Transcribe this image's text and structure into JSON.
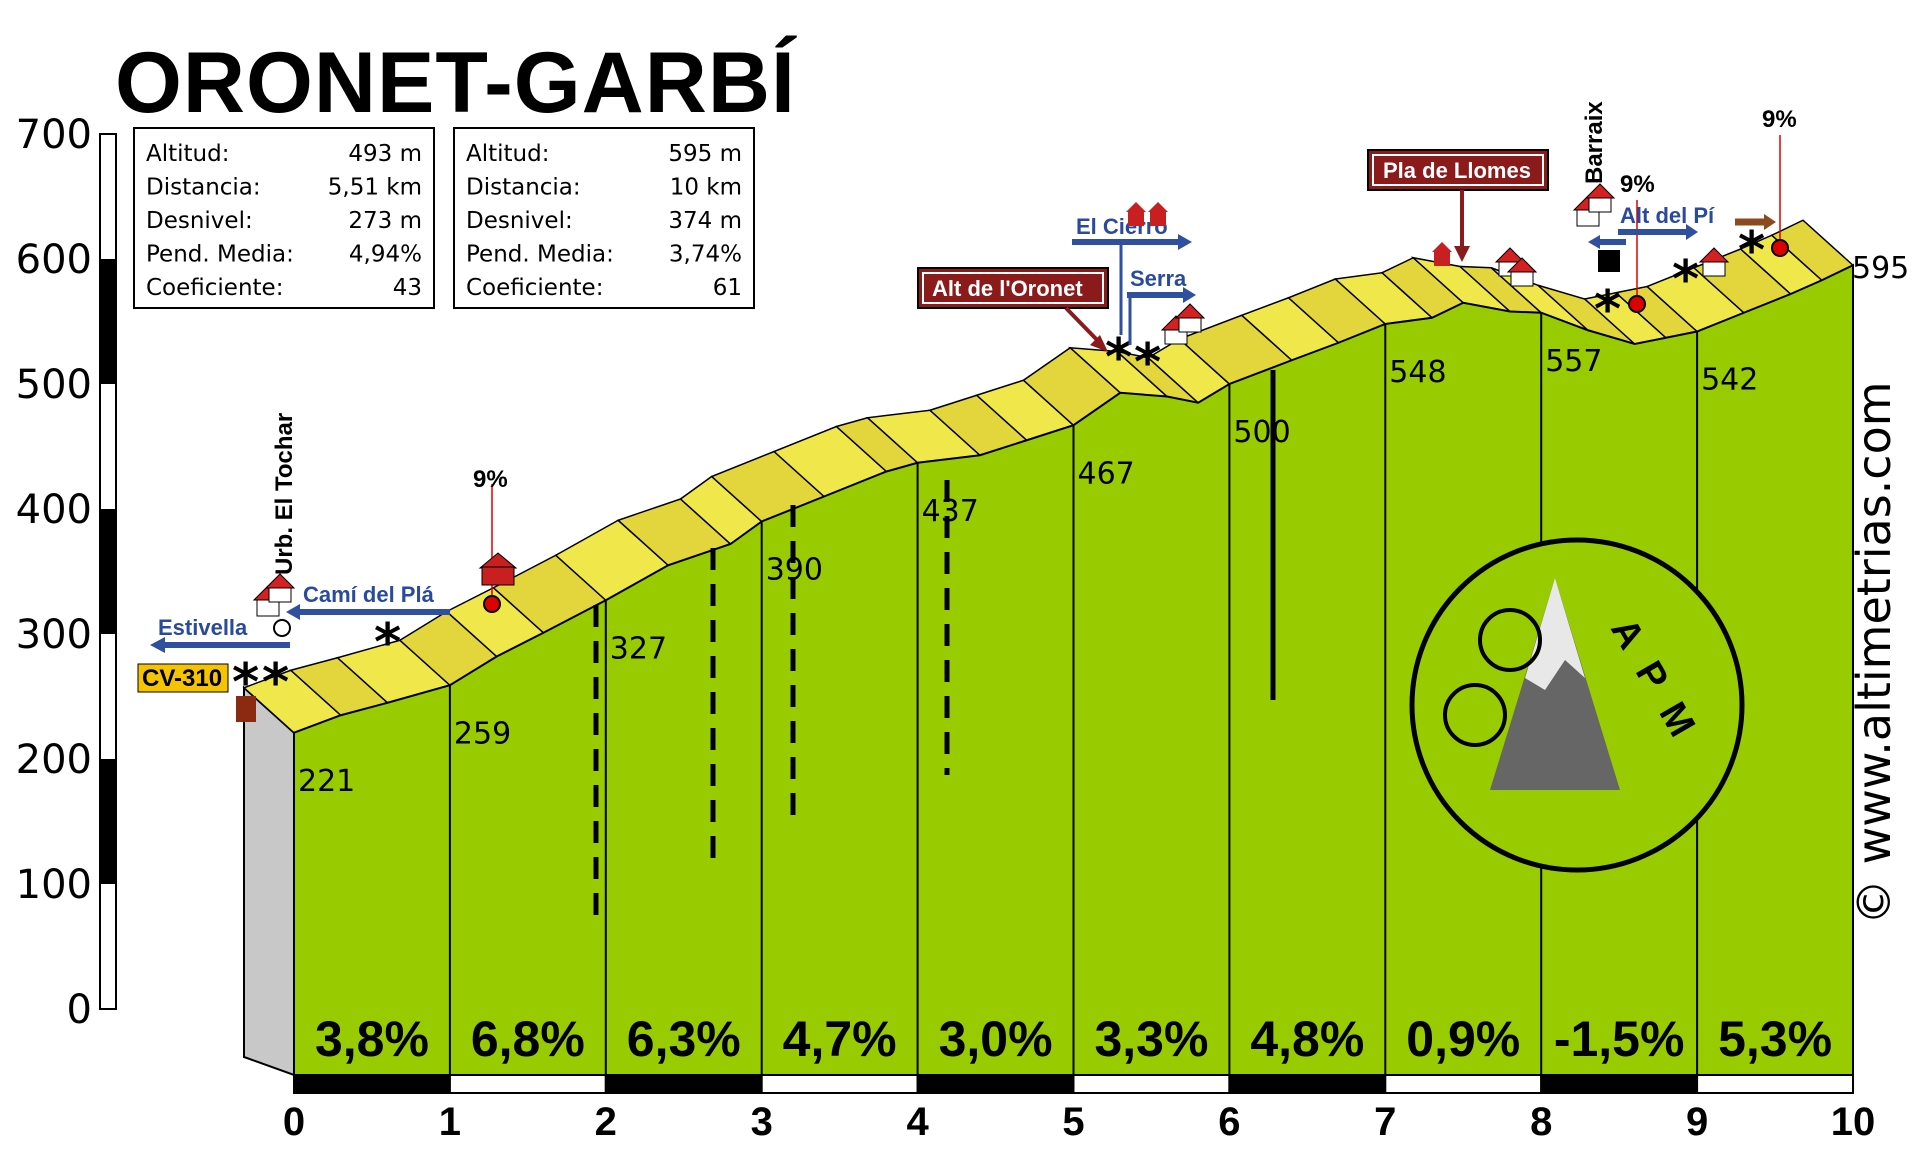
{
  "title": "ORONET-GARBÍ",
  "site": "© www.altimetrias.com",
  "logo_text": "APM",
  "colors": {
    "profile_green": "#99cc00",
    "ribbon_yellow": "#f0e84a",
    "dark_red": "#8b1a1a",
    "arrow_blue": "#2f4f9f"
  },
  "info_boxes": [
    {
      "rows": [
        {
          "label": "Altitud:",
          "value": "493 m"
        },
        {
          "label": "Distancia:",
          "value": "5,51 km"
        },
        {
          "label": "Desnivel:",
          "value": "273 m"
        },
        {
          "label": "Pend. Media:",
          "value": "4,94%"
        },
        {
          "label": "Coeficiente:",
          "value": "43"
        }
      ]
    },
    {
      "rows": [
        {
          "label": "Altitud:",
          "value": "595 m"
        },
        {
          "label": "Distancia:",
          "value": "10 km"
        },
        {
          "label": "Desnivel:",
          "value": "374 m"
        },
        {
          "label": "Pend. Media:",
          "value": "3,74%"
        },
        {
          "label": "Coeficiente:",
          "value": "61"
        }
      ]
    }
  ],
  "landmarks": {
    "alt_oronet": "Alt de l'Oronet",
    "pla_llomes": "Pla de Llomes",
    "el_cierro": "El Cierro",
    "serra": "Serra",
    "alt_del_pi": "Alt del Pí",
    "estivella": "Estivella",
    "cami_del_pla": "Camí del Plá",
    "cv310": "CV-310",
    "urb_tochar": "Urb. El Tochar",
    "barraix": "Barraix",
    "grad_markers": [
      "9%",
      "9%",
      "9%"
    ]
  },
  "chart_data": {
    "type": "area",
    "title": "ORONET-GARBÍ",
    "xlabel": "",
    "ylabel": "",
    "xlim": [
      0,
      10
    ],
    "ylim": [
      0,
      700
    ],
    "y_ticks": [
      0,
      100,
      200,
      300,
      400,
      500,
      600,
      700
    ],
    "x_ticks": [
      0,
      1,
      2,
      3,
      4,
      5,
      6,
      7,
      8,
      9,
      10
    ],
    "profile": {
      "x": [
        0,
        0.3,
        0.6,
        1.0,
        1.3,
        1.6,
        2.0,
        2.4,
        2.8,
        3.0,
        3.4,
        3.8,
        4.0,
        4.4,
        4.7,
        5.0,
        5.3,
        5.6,
        5.8,
        6.0,
        6.4,
        6.7,
        7.0,
        7.3,
        7.5,
        7.8,
        8.0,
        8.3,
        8.6,
        8.8,
        9.0,
        9.3,
        9.6,
        9.8,
        10.0
      ],
      "y": [
        221,
        235,
        245,
        259,
        282,
        301,
        327,
        355,
        372,
        390,
        410,
        430,
        437,
        443,
        455,
        467,
        493,
        490,
        485,
        500,
        519,
        533,
        548,
        553,
        565,
        558,
        557,
        543,
        532,
        537,
        542,
        557,
        572,
        583,
        595
      ]
    },
    "km_altitudes": [
      221,
      259,
      327,
      390,
      437,
      467,
      500,
      548,
      557,
      542,
      595
    ],
    "segment_gradients": [
      "3,8%",
      "6,8%",
      "6,3%",
      "4,7%",
      "3,0%",
      "3,3%",
      "4,8%",
      "0,9%",
      "-1,5%",
      "5,3%"
    ]
  }
}
